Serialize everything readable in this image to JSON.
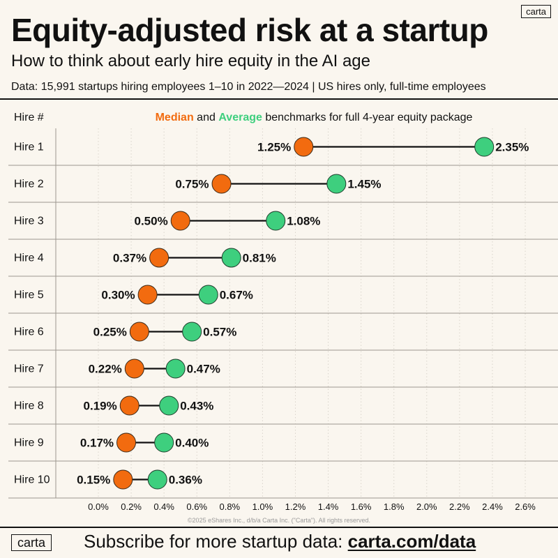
{
  "header": {
    "logo": "carta",
    "title": "Equity-adjusted risk at a startup",
    "subtitle": "How to think about early hire equity in the AI age",
    "source": "Data: 15,991 startups hiring employees 1–10 in 2022—2024 | US hires only, full-time employees"
  },
  "chart_data": {
    "type": "dumbbell",
    "row_header": "Hire #",
    "legend": {
      "median_label": "Median",
      "connector": "and",
      "average_label": "Average",
      "suffix": "benchmarks for full 4-year equity package"
    },
    "categories": [
      "Hire 1",
      "Hire 2",
      "Hire 3",
      "Hire 4",
      "Hire 5",
      "Hire 6",
      "Hire 7",
      "Hire 8",
      "Hire 9",
      "Hire 10"
    ],
    "series": [
      {
        "name": "Median",
        "color": "#F26B0F",
        "values": [
          1.25,
          0.75,
          0.5,
          0.37,
          0.3,
          0.25,
          0.22,
          0.19,
          0.17,
          0.15
        ]
      },
      {
        "name": "Average",
        "color": "#3ECF7E",
        "values": [
          2.35,
          1.45,
          1.08,
          0.81,
          0.67,
          0.57,
          0.47,
          0.43,
          0.4,
          0.36
        ]
      }
    ],
    "value_labels": {
      "median": [
        "1.25%",
        "0.75%",
        "0.50%",
        "0.37%",
        "0.30%",
        "0.25%",
        "0.22%",
        "0.19%",
        "0.17%",
        "0.15%"
      ],
      "average": [
        "2.35%",
        "1.45%",
        "1.08%",
        "0.81%",
        "0.67%",
        "0.57%",
        "0.47%",
        "0.43%",
        "0.40%",
        "0.36%"
      ]
    },
    "xlim": [
      0.0,
      2.6
    ],
    "xticks": [
      0.0,
      0.2,
      0.4,
      0.6,
      0.8,
      1.0,
      1.2,
      1.4,
      1.6,
      1.8,
      2.0,
      2.2,
      2.4,
      2.6
    ],
    "xtick_labels": [
      "0.0%",
      "0.2%",
      "0.4%",
      "0.6%",
      "0.8%",
      "1.0%",
      "1.2%",
      "1.4%",
      "1.6%",
      "1.8%",
      "2.0%",
      "2.2%",
      "2.4%",
      "2.6%"
    ],
    "grid": "vertical dotted"
  },
  "copyright": "©2025 eShares Inc., d/b/a Carta Inc. (\"Carta\"). All rights reserved.",
  "footer": {
    "logo": "carta",
    "text": "Subscribe for more startup data:",
    "link": "carta.com/data"
  }
}
